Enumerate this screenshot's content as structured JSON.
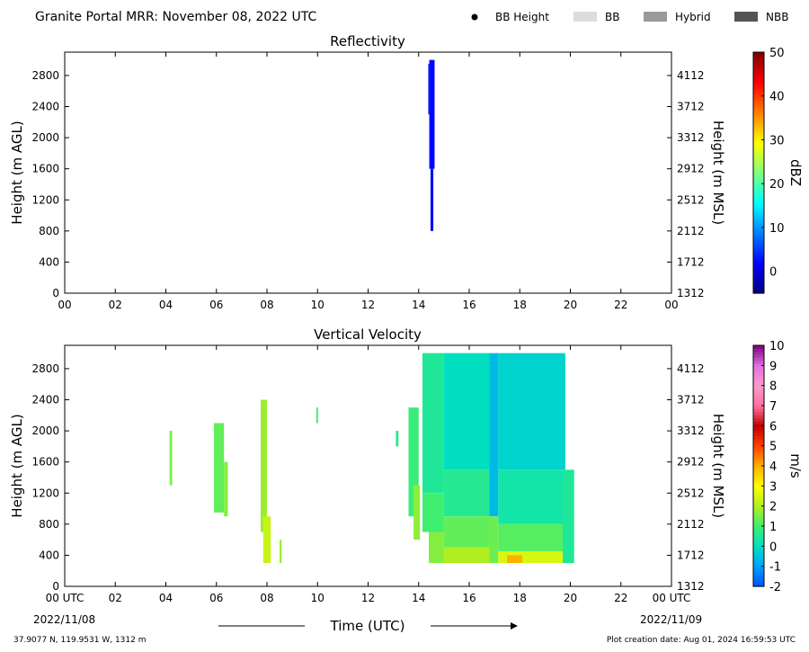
{
  "header": {
    "title": "Granite Portal MRR:  November 08, 2022 UTC",
    "legend": [
      {
        "label": "BB Height",
        "kind": "dot",
        "color": "#000000"
      },
      {
        "label": "BB",
        "kind": "swatch",
        "color": "#dcdcdc"
      },
      {
        "label": "Hybrid",
        "kind": "swatch",
        "color": "#999999"
      },
      {
        "label": "NBB",
        "kind": "swatch",
        "color": "#555555"
      }
    ]
  },
  "footer": {
    "location": "37.9077 N, 119.9531 W, 1312 m",
    "creation": "Plot creation date: Aug 01, 2024 16:59:53 UTC",
    "x_axis_title": "Time (UTC)",
    "start_date": "2022/11/08",
    "end_date": "2022/11/09"
  },
  "chart_data": [
    {
      "type": "heatmap",
      "title": "Reflectivity",
      "xlabel": "",
      "ylabel": "Height (m AGL)",
      "y2label": "Height (m MSL)",
      "xlim": [
        0,
        24
      ],
      "ylim": [
        0,
        3100
      ],
      "x_ticks": [
        "00",
        "02",
        "04",
        "06",
        "08",
        "10",
        "12",
        "14",
        "16",
        "18",
        "20",
        "22",
        "00"
      ],
      "y_ticks": [
        0,
        400,
        800,
        1200,
        1600,
        2000,
        2400,
        2800
      ],
      "y2_ticks": [
        1312,
        1712,
        2112,
        2512,
        2912,
        3312,
        3712,
        4112
      ],
      "colorbar": {
        "label": "dBZ",
        "range": [
          -5,
          50
        ],
        "ticks": [
          0,
          10,
          20,
          30,
          40,
          50
        ],
        "colors": [
          "#00007f",
          "#0000ff",
          "#007fff",
          "#00ffff",
          "#7fff7f",
          "#ffff00",
          "#ff7f00",
          "#ff0000",
          "#7f0000"
        ]
      },
      "cells": [
        {
          "t0": 14.42,
          "t1": 14.63,
          "h0": 1600,
          "h1": 3000,
          "value": 2
        },
        {
          "t0": 14.47,
          "t1": 14.58,
          "h0": 800,
          "h1": 1600,
          "value": 1
        },
        {
          "t0": 14.38,
          "t1": 14.47,
          "h0": 2300,
          "h1": 2950,
          "value": 3
        }
      ]
    },
    {
      "type": "heatmap",
      "title": "Vertical Velocity",
      "xlabel": "",
      "ylabel": "Height (m AGL)",
      "y2label": "Height (m MSL)",
      "xlim": [
        0,
        24
      ],
      "ylim": [
        0,
        3100
      ],
      "x_ticks": [
        "00 UTC",
        "02",
        "04",
        "06",
        "08",
        "10",
        "12",
        "14",
        "16",
        "18",
        "20",
        "22",
        "00 UTC"
      ],
      "y_ticks": [
        0,
        400,
        800,
        1200,
        1600,
        2000,
        2400,
        2800
      ],
      "y2_ticks": [
        1312,
        1712,
        2112,
        2512,
        2912,
        3312,
        3712,
        4112
      ],
      "colorbar": {
        "label": "m/s",
        "range": [
          -2,
          10
        ],
        "ticks": [
          -2,
          -1,
          0,
          1,
          2,
          3,
          4,
          5,
          6,
          7,
          8,
          9,
          10
        ],
        "colors": [
          "#0050ff",
          "#00a0ff",
          "#00e0c0",
          "#40ee70",
          "#b0ee20",
          "#ffff00",
          "#ffb000",
          "#ff4000",
          "#c00000",
          "#ff70a0",
          "#ff99cc",
          "#e070e0",
          "#800080"
        ]
      },
      "cells": [
        {
          "t0": 4.15,
          "t1": 4.25,
          "h0": 1300,
          "h1": 2000,
          "value": 1.5
        },
        {
          "t0": 5.9,
          "t1": 6.3,
          "h0": 950,
          "h1": 2100,
          "value": 1.3
        },
        {
          "t0": 6.3,
          "t1": 6.45,
          "h0": 900,
          "h1": 1600,
          "value": 1.6
        },
        {
          "t0": 7.75,
          "t1": 8.0,
          "h0": 700,
          "h1": 2400,
          "value": 1.8
        },
        {
          "t0": 7.85,
          "t1": 8.15,
          "h0": 300,
          "h1": 900,
          "value": 2.3
        },
        {
          "t0": 8.5,
          "t1": 8.58,
          "h0": 300,
          "h1": 600,
          "value": 1.8
        },
        {
          "t0": 9.95,
          "t1": 10.02,
          "h0": 2100,
          "h1": 2300,
          "value": 1.0
        },
        {
          "t0": 13.1,
          "t1": 13.2,
          "h0": 1800,
          "h1": 2000,
          "value": 0.6
        },
        {
          "t0": 13.6,
          "t1": 14.0,
          "h0": 900,
          "h1": 2300,
          "value": 0.9
        },
        {
          "t0": 13.8,
          "t1": 14.05,
          "h0": 600,
          "h1": 1300,
          "value": 1.7
        },
        {
          "t0": 14.15,
          "t1": 15.0,
          "h0": 1200,
          "h1": 3000,
          "value": 0.5
        },
        {
          "t0": 14.15,
          "t1": 15.0,
          "h0": 700,
          "h1": 1200,
          "value": 1.0
        },
        {
          "t0": 14.4,
          "t1": 15.0,
          "h0": 300,
          "h1": 700,
          "value": 1.6
        },
        {
          "t0": 15.0,
          "t1": 16.8,
          "h0": 1500,
          "h1": 3000,
          "value": 0.0
        },
        {
          "t0": 15.0,
          "t1": 16.8,
          "h0": 900,
          "h1": 1500,
          "value": 0.6
        },
        {
          "t0": 15.0,
          "t1": 16.8,
          "h0": 500,
          "h1": 900,
          "value": 1.3
        },
        {
          "t0": 15.0,
          "t1": 16.8,
          "h0": 300,
          "h1": 500,
          "value": 2.0
        },
        {
          "t0": 16.8,
          "t1": 17.15,
          "h0": 900,
          "h1": 3000,
          "value": -0.6
        },
        {
          "t0": 16.8,
          "t1": 17.15,
          "h0": 300,
          "h1": 900,
          "value": 1.4
        },
        {
          "t0": 17.15,
          "t1": 19.8,
          "h0": 1500,
          "h1": 3000,
          "value": -0.2
        },
        {
          "t0": 17.15,
          "t1": 19.8,
          "h0": 800,
          "h1": 1500,
          "value": 0.3
        },
        {
          "t0": 17.15,
          "t1": 19.8,
          "h0": 450,
          "h1": 800,
          "value": 1.2
        },
        {
          "t0": 17.15,
          "t1": 19.8,
          "h0": 300,
          "h1": 450,
          "value": 2.5
        },
        {
          "t0": 17.5,
          "t1": 18.1,
          "h0": 300,
          "h1": 400,
          "value": 4.0
        },
        {
          "t0": 19.7,
          "t1": 20.15,
          "h0": 300,
          "h1": 1500,
          "value": 0.5
        }
      ]
    }
  ]
}
